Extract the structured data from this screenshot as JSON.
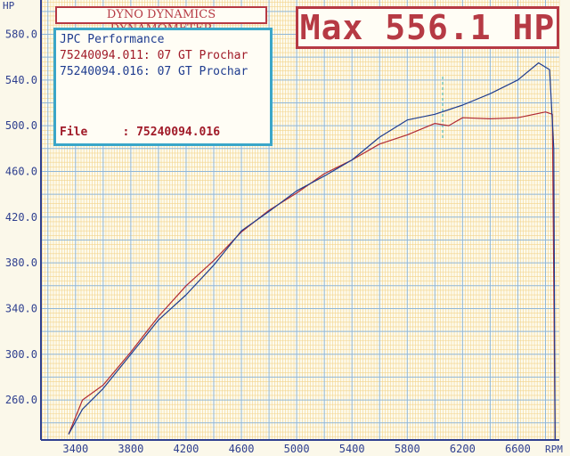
{
  "header": {
    "title": "DYNO DYNAMICS DYNAMOMETER",
    "max_label": "Max 556.1 HP"
  },
  "legend": {
    "company": "JPC Performance",
    "runs": [
      {
        "text": "75240094.011: 07 GT Prochar",
        "color": "#a01a28"
      },
      {
        "text": "75240094.016: 07 GT Prochar",
        "color": "#1f3c8f"
      }
    ],
    "file_label": "File",
    "file_value": ": 75240094.016"
  },
  "chart_data": {
    "type": "line",
    "ylabel": "HP",
    "xlabel": "RPM",
    "xlim": [
      3150,
      6900
    ],
    "ylim": [
      225,
      610
    ],
    "x_ticks": [
      3400,
      3800,
      4200,
      4600,
      5000,
      5400,
      5800,
      6200,
      6600
    ],
    "x_tick_labels": [
      "3400",
      "3800",
      "4200",
      "4600",
      "5000",
      "5400",
      "5800",
      "6200",
      "6600"
    ],
    "y_ticks": [
      260,
      300,
      340,
      380,
      420,
      460,
      500,
      540,
      580
    ],
    "y_tick_labels": [
      "260.0",
      "300.0",
      "340.0",
      "380.0",
      "420.0",
      "460.0",
      "500.0",
      "540.0",
      "580.0"
    ],
    "grid": true,
    "series": [
      {
        "color": "#b02a33",
        "x": [
          3350,
          3450,
          3600,
          3800,
          4000,
          4200,
          4400,
          4600,
          4800,
          5000,
          5200,
          5400,
          5600,
          5800,
          6000,
          6100,
          6200,
          6400,
          6600,
          6800,
          6850,
          6870
        ],
        "y": [
          230,
          260,
          273,
          302,
          333,
          360,
          382,
          407,
          426,
          441,
          458,
          470,
          484,
          492,
          502,
          500,
          507,
          506,
          507,
          512,
          510,
          225
        ]
      },
      {
        "color": "#1f3c8f",
        "x": [
          3350,
          3450,
          3600,
          3800,
          4000,
          4200,
          4400,
          4600,
          4800,
          5000,
          5200,
          5400,
          5600,
          5800,
          6000,
          6200,
          6400,
          6600,
          6750,
          6830,
          6860,
          6870
        ],
        "y": [
          230,
          252,
          270,
          300,
          330,
          352,
          378,
          408,
          425,
          443,
          456,
          470,
          490,
          505,
          510,
          518,
          528,
          540,
          555,
          549,
          480,
          225
        ]
      }
    ]
  }
}
